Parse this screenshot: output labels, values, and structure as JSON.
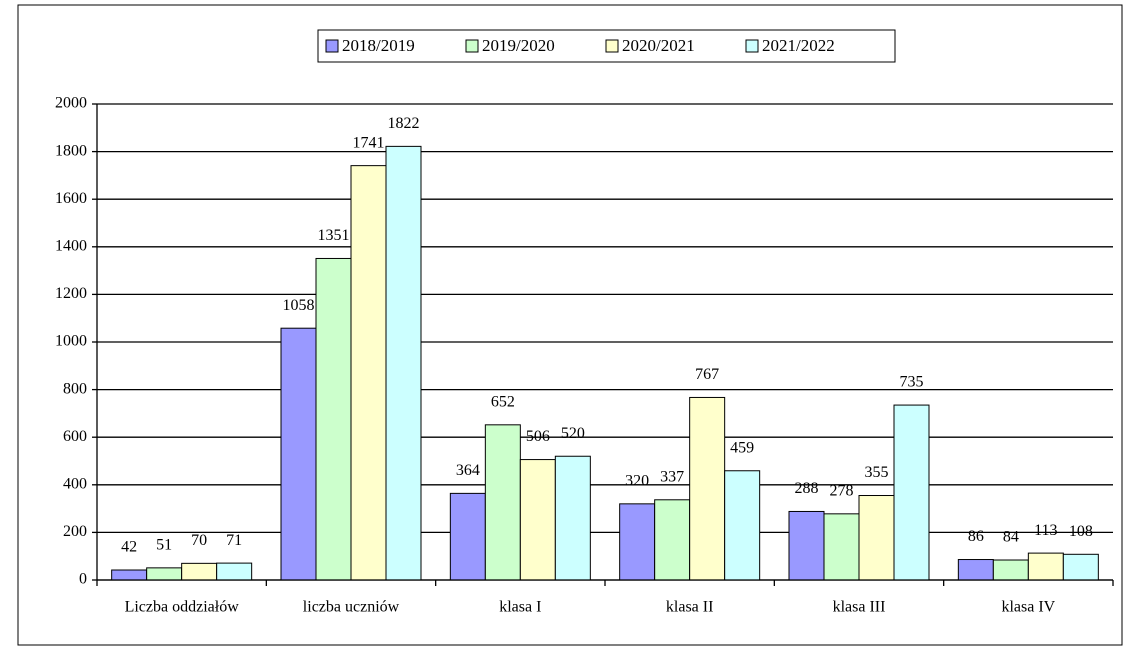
{
  "chart_data": {
    "type": "bar",
    "categories": [
      "Liczba oddziałów",
      "liczba uczniów",
      "klasa I",
      "klasa II",
      "klasa III",
      "klasa IV"
    ],
    "series": [
      {
        "name": "2018/2019",
        "color": "#9999ff",
        "values": [
          42,
          1058,
          364,
          320,
          288,
          86
        ]
      },
      {
        "name": "2019/2020",
        "color": "#ccffcc",
        "values": [
          51,
          1351,
          652,
          337,
          278,
          84
        ]
      },
      {
        "name": "2020/2021",
        "color": "#ffffcc",
        "values": [
          70,
          1741,
          506,
          767,
          355,
          113
        ]
      },
      {
        "name": "2021/2022",
        "color": "#ccffff",
        "values": [
          71,
          1822,
          520,
          459,
          735,
          108
        ]
      }
    ],
    "ylim": [
      0,
      2000
    ],
    "yticks": [
      0,
      200,
      400,
      600,
      800,
      1000,
      1200,
      1400,
      1600,
      1800,
      2000
    ],
    "grid": true,
    "legend": "top"
  }
}
